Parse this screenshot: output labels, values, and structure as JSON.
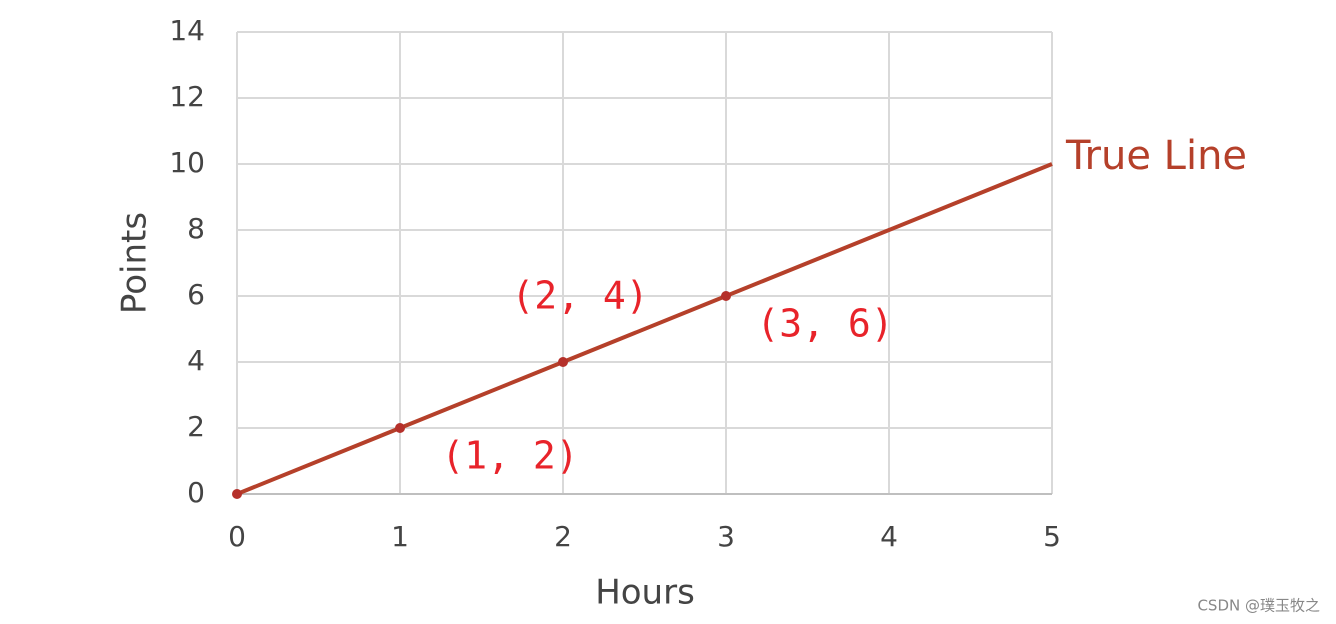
{
  "chart_data": {
    "type": "line",
    "x_label": "Hours",
    "y_label": "Points",
    "x": [
      0,
      1,
      2,
      3,
      4,
      5
    ],
    "series": [
      {
        "name": "True Line",
        "color": "#b5402a",
        "values": [
          0,
          2,
          4,
          6,
          8,
          10
        ]
      }
    ],
    "points": {
      "x": [
        0,
        1,
        2,
        3
      ],
      "y": [
        0,
        2,
        4,
        6
      ],
      "color": "#b5302a"
    },
    "annotations": [
      "(1, 2)",
      "(2, 4)",
      "(3, 6)"
    ],
    "annotation_color": "#e8232a",
    "xlim": [
      0,
      5
    ],
    "xticks": [
      0,
      1,
      2,
      3,
      4,
      5
    ],
    "ylim": [
      0,
      14
    ],
    "yticks": [
      0,
      2,
      4,
      6,
      8,
      10,
      12,
      14
    ],
    "grid": true
  },
  "watermark": "CSDN @璞玉牧之"
}
